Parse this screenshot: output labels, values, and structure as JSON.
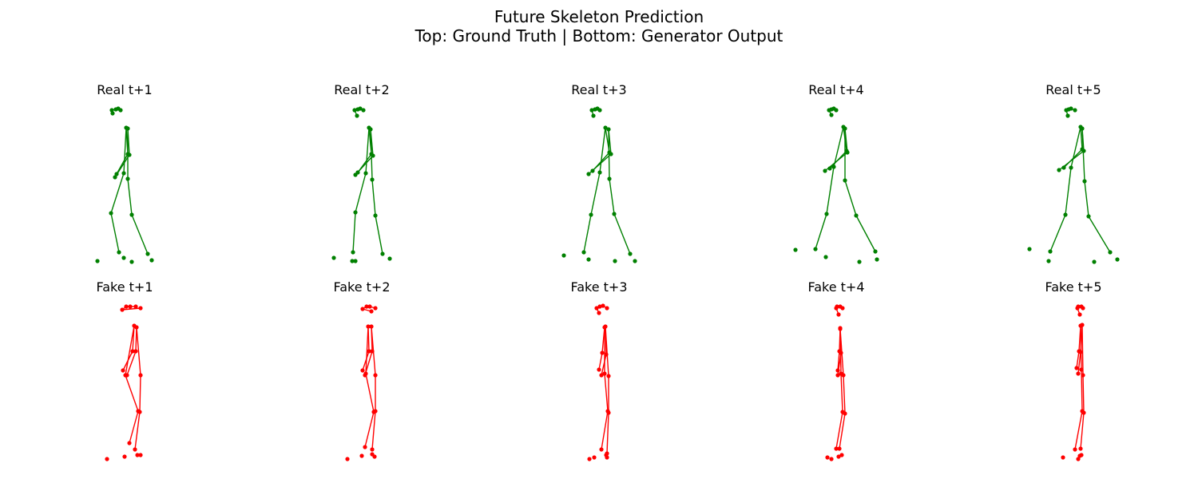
{
  "figure": {
    "title_line1": "Future Skeleton Prediction",
    "title_line2": "Top: Ground Truth | Bottom: Generator Output"
  },
  "colors": {
    "real": "#008000",
    "fake": "#ff0000"
  },
  "chart_data": {
    "type": "scatter",
    "title": "Future Skeleton Prediction\nTop: Ground Truth | Bottom: Generator Output",
    "axes_visible": false,
    "bone_pairs": [
      [
        0,
        1
      ],
      [
        0,
        2
      ],
      [
        1,
        3
      ],
      [
        2,
        4
      ],
      [
        5,
        6
      ],
      [
        5,
        7
      ],
      [
        7,
        9
      ],
      [
        6,
        8
      ],
      [
        8,
        10
      ],
      [
        5,
        11
      ],
      [
        6,
        12
      ],
      [
        11,
        13
      ],
      [
        13,
        15
      ],
      [
        12,
        14
      ],
      [
        14,
        16
      ]
    ],
    "panels": [
      {
        "title": "Real t+1",
        "row": "real",
        "points": [
          [
            145,
            137
          ],
          [
            148,
            136
          ],
          [
            140,
            138
          ],
          [
            151,
            138
          ],
          [
            141,
            142
          ],
          [
            158,
            160
          ],
          [
            160,
            161
          ],
          [
            160,
            193
          ],
          [
            162,
            194
          ],
          [
            146,
            218
          ],
          [
            144,
            222
          ],
          [
            155,
            217
          ],
          [
            160,
            224
          ],
          [
            139,
            267
          ],
          [
            165,
            269
          ],
          [
            149,
            316
          ],
          [
            185,
            318
          ],
          [
            122,
            327
          ],
          [
            155,
            323
          ],
          [
            165,
            328
          ],
          [
            190,
            326
          ]
        ]
      },
      {
        "title": "Real t+2",
        "row": "real",
        "points": [
          [
            448,
            137
          ],
          [
            451,
            136
          ],
          [
            444,
            138
          ],
          [
            455,
            138
          ],
          [
            447,
            145
          ],
          [
            462,
            160
          ],
          [
            464,
            162
          ],
          [
            465,
            193
          ],
          [
            467,
            195
          ],
          [
            448,
            216
          ],
          [
            445,
            219
          ],
          [
            458,
            217
          ],
          [
            466,
            225
          ],
          [
            445,
            266
          ],
          [
            470,
            270
          ],
          [
            442,
            316
          ],
          [
            479,
            318
          ],
          [
            418,
            323
          ],
          [
            441,
            327
          ],
          [
            445,
            327
          ],
          [
            488,
            324
          ]
        ]
      },
      {
        "title": "Real t+3",
        "row": "real",
        "points": [
          [
            745,
            137
          ],
          [
            748,
            136
          ],
          [
            741,
            138
          ],
          [
            751,
            138
          ],
          [
            743,
            145
          ],
          [
            758,
            160
          ],
          [
            762,
            162
          ],
          [
            763,
            191
          ],
          [
            765,
            193
          ],
          [
            742,
            214
          ],
          [
            737,
            218
          ],
          [
            751,
            216
          ],
          [
            763,
            224
          ],
          [
            740,
            269
          ],
          [
            769,
            268
          ],
          [
            731,
            316
          ],
          [
            789,
            318
          ],
          [
            706,
            320
          ],
          [
            737,
            325
          ],
          [
            770,
            327
          ],
          [
            795,
            327
          ]
        ]
      },
      {
        "title": "Real t+4",
        "row": "real",
        "points": [
          [
            1041,
            137
          ],
          [
            1044,
            136
          ],
          [
            1038,
            138
          ],
          [
            1047,
            138
          ],
          [
            1041,
            144
          ],
          [
            1056,
            159
          ],
          [
            1058,
            161
          ],
          [
            1060,
            189
          ],
          [
            1061,
            191
          ],
          [
            1039,
            211
          ],
          [
            1033,
            214
          ],
          [
            1044,
            209
          ],
          [
            1058,
            226
          ],
          [
            1035,
            268
          ],
          [
            1072,
            270
          ],
          [
            1021,
            312
          ],
          [
            1096,
            315
          ],
          [
            996,
            313
          ],
          [
            1034,
            322
          ],
          [
            1076,
            328
          ],
          [
            1098,
            325
          ]
        ]
      },
      {
        "title": "Real t+5",
        "row": "real",
        "points": [
          [
            1338,
            137
          ],
          [
            1341,
            136
          ],
          [
            1335,
            138
          ],
          [
            1346,
            138
          ],
          [
            1337,
            145
          ],
          [
            1353,
            159
          ],
          [
            1355,
            161
          ],
          [
            1355,
            187
          ],
          [
            1357,
            189
          ],
          [
            1332,
            210
          ],
          [
            1326,
            213
          ],
          [
            1341,
            210
          ],
          [
            1358,
            227
          ],
          [
            1334,
            269
          ],
          [
            1363,
            271
          ],
          [
            1315,
            315
          ],
          [
            1390,
            316
          ],
          [
            1289,
            312
          ],
          [
            1313,
            327
          ],
          [
            1370,
            328
          ],
          [
            1399,
            325
          ]
        ]
      },
      {
        "title": "Fake t+1",
        "row": "fake",
        "points": [
          [
            158,
            384
          ],
          [
            163,
            384
          ],
          [
            153,
            388
          ],
          [
            170,
            384
          ],
          [
            176,
            386
          ],
          [
            168,
            408
          ],
          [
            171,
            410
          ],
          [
            166,
            440
          ],
          [
            170,
            440
          ],
          [
            154,
            464
          ],
          [
            159,
            470
          ],
          [
            157,
            470
          ],
          [
            176,
            470
          ],
          [
            173,
            515
          ],
          [
            175,
            516
          ],
          [
            162,
            555
          ],
          [
            169,
            563
          ],
          [
            134,
            575
          ],
          [
            156,
            572
          ],
          [
            172,
            570
          ],
          [
            176,
            570
          ]
        ]
      },
      {
        "title": "Fake t+2",
        "row": "fake",
        "points": [
          [
            459,
            384
          ],
          [
            463,
            384
          ],
          [
            454,
            387
          ],
          [
            470,
            386
          ],
          [
            465,
            390
          ],
          [
            461,
            409
          ],
          [
            465,
            409
          ],
          [
            462,
            440
          ],
          [
            466,
            440
          ],
          [
            454,
            464
          ],
          [
            457,
            470
          ],
          [
            458,
            468
          ],
          [
            470,
            470
          ],
          [
            468,
            516
          ],
          [
            470,
            515
          ],
          [
            457,
            560
          ],
          [
            466,
            563
          ],
          [
            435,
            575
          ],
          [
            453,
            571
          ],
          [
            466,
            569
          ],
          [
            469,
            572
          ]
        ]
      },
      {
        "title": "Fake t+3",
        "row": "fake",
        "points": [
          [
            751,
            384
          ],
          [
            755,
            383
          ],
          [
            747,
            386
          ],
          [
            760,
            386
          ],
          [
            750,
            392
          ],
          [
            757,
            410
          ],
          [
            758,
            409
          ],
          [
            754,
            442
          ],
          [
            759,
            444
          ],
          [
            750,
            463
          ],
          [
            753,
            470
          ],
          [
            757,
            468
          ],
          [
            762,
            471
          ],
          [
            761,
            515
          ],
          [
            762,
            517
          ],
          [
            753,
            563
          ],
          [
            760,
            568
          ],
          [
            738,
            575
          ],
          [
            744,
            573
          ],
          [
            759,
            570
          ],
          [
            760,
            573
          ]
        ]
      },
      {
        "title": "Fake t+4",
        "row": "fake",
        "points": [
          [
            1048,
            384
          ],
          [
            1052,
            384
          ],
          [
            1047,
            386
          ],
          [
            1055,
            386
          ],
          [
            1050,
            394
          ],
          [
            1052,
            411
          ],
          [
            1052,
            412
          ],
          [
            1051,
            440
          ],
          [
            1053,
            442
          ],
          [
            1049,
            464
          ],
          [
            1049,
            470
          ],
          [
            1053,
            468
          ],
          [
            1056,
            470
          ],
          [
            1055,
            516
          ],
          [
            1058,
            518
          ],
          [
            1047,
            562
          ],
          [
            1051,
            562
          ],
          [
            1036,
            573
          ],
          [
            1041,
            575
          ],
          [
            1050,
            572
          ],
          [
            1054,
            570
          ]
        ]
      },
      {
        "title": "Fake t+5",
        "row": "fake",
        "points": [
          [
            1350,
            384
          ],
          [
            1354,
            384
          ],
          [
            1349,
            386
          ],
          [
            1356,
            386
          ],
          [
            1352,
            394
          ],
          [
            1353,
            408
          ],
          [
            1355,
            407
          ],
          [
            1351,
            440
          ],
          [
            1353,
            441
          ],
          [
            1348,
            461
          ],
          [
            1350,
            468
          ],
          [
            1354,
            463
          ],
          [
            1356,
            470
          ],
          [
            1355,
            515
          ],
          [
            1357,
            517
          ],
          [
            1346,
            563
          ],
          [
            1353,
            562
          ],
          [
            1331,
            573
          ],
          [
            1350,
            575
          ],
          [
            1352,
            571
          ],
          [
            1354,
            570
          ]
        ]
      }
    ]
  }
}
